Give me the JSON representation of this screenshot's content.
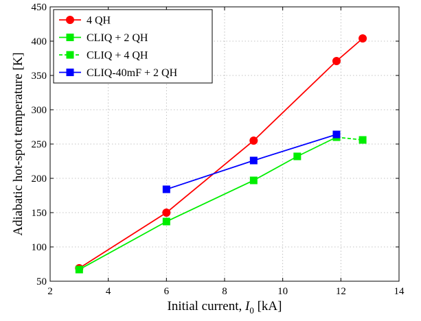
{
  "chart_data": {
    "type": "line",
    "title": "",
    "xlabel_main": "Initial current, ",
    "xlabel_symbol": "I",
    "xlabel_subscript": "0",
    "xlabel_unit": " [kA]",
    "ylabel": "Adiabatic hot-spot temperature [K]",
    "xlim": [
      2,
      14
    ],
    "ylim": [
      50,
      450
    ],
    "xticks": [
      2,
      4,
      6,
      8,
      10,
      12,
      14
    ],
    "yticks": [
      50,
      100,
      150,
      200,
      250,
      300,
      350,
      400,
      450
    ],
    "grid": true,
    "legend_position": "top-left",
    "series": [
      {
        "name": "4 QH",
        "color": "#ff0000",
        "marker": "circle",
        "line_style": "solid",
        "x": [
          3,
          6,
          9,
          11.85,
          12.75
        ],
        "y": [
          69,
          150,
          255,
          371,
          404
        ]
      },
      {
        "name": "CLIQ + 2 QH",
        "color": "#00ee00",
        "marker": "square",
        "line_style": "solid",
        "x": [
          3,
          6,
          9,
          10.5,
          11.85
        ],
        "y": [
          67,
          137,
          197,
          232,
          260
        ]
      },
      {
        "name": "CLIQ + 4 QH",
        "color": "#00ee00",
        "marker": "square",
        "line_style": "dashed",
        "x": [
          11.85,
          12.75
        ],
        "y": [
          260,
          256
        ]
      },
      {
        "name": "CLIQ-40mF + 2 QH",
        "color": "#0000ff",
        "marker": "square",
        "line_style": "solid",
        "x": [
          6,
          9,
          11.85
        ],
        "y": [
          184,
          226,
          264
        ]
      }
    ]
  }
}
